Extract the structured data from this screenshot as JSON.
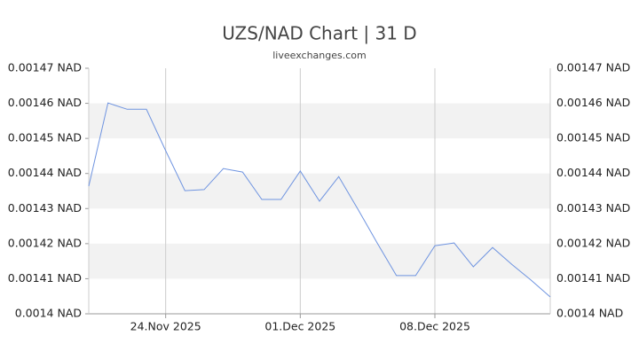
{
  "chart_data": {
    "type": "line",
    "title": "UZS/NAD Chart | 31 D",
    "subtitle": "liveexchanges.com",
    "x": [
      "2025-11-20",
      "2025-11-21",
      "2025-11-22",
      "2025-11-23",
      "2025-11-24",
      "2025-11-25",
      "2025-11-26",
      "2025-11-27",
      "2025-11-28",
      "2025-11-29",
      "2025-11-30",
      "2025-12-01",
      "2025-12-02",
      "2025-12-03",
      "2025-12-04",
      "2025-12-05",
      "2025-12-06",
      "2025-12-07",
      "2025-12-08",
      "2025-12-09",
      "2025-12-10",
      "2025-12-11",
      "2025-12-12",
      "2025-12-13",
      "2025-12-14"
    ],
    "values": [
      0.0014364,
      0.0014601,
      0.0014583,
      0.0014583,
      0.0014465,
      0.0014351,
      0.0014354,
      0.0014414,
      0.0014404,
      0.0014326,
      0.0014326,
      0.0014407,
      0.0014321,
      0.0014391,
      0.0014298,
      0.0014202,
      0.0014109,
      0.0014109,
      0.0014194,
      0.0014202,
      0.0014134,
      0.0014189,
      0.0014141,
      0.0014096,
      0.0014048
    ],
    "color": "#6f94e0",
    "xlim": [
      "2025-11-20",
      "2025-12-14"
    ],
    "xticks": [
      {
        "value": "2025-11-24",
        "label": "24.Nov 2025"
      },
      {
        "value": "2025-12-01",
        "label": "01.Dec 2025"
      },
      {
        "value": "2025-12-08",
        "label": "08.Dec 2025"
      }
    ],
    "ylim": [
      0.0014,
      0.00147
    ],
    "yticks": [
      {
        "value": 0.0014,
        "label": "0.0014 NAD"
      },
      {
        "value": 0.00141,
        "label": "0.00141 NAD"
      },
      {
        "value": 0.00142,
        "label": "0.00142 NAD"
      },
      {
        "value": 0.00143,
        "label": "0.00143 NAD"
      },
      {
        "value": 0.00144,
        "label": "0.00144 NAD"
      },
      {
        "value": 0.00145,
        "label": "0.00145 NAD"
      },
      {
        "value": 0.00146,
        "label": "0.00146 NAD"
      },
      {
        "value": 0.00147,
        "label": "0.00147 NAD"
      }
    ],
    "grid": true
  }
}
